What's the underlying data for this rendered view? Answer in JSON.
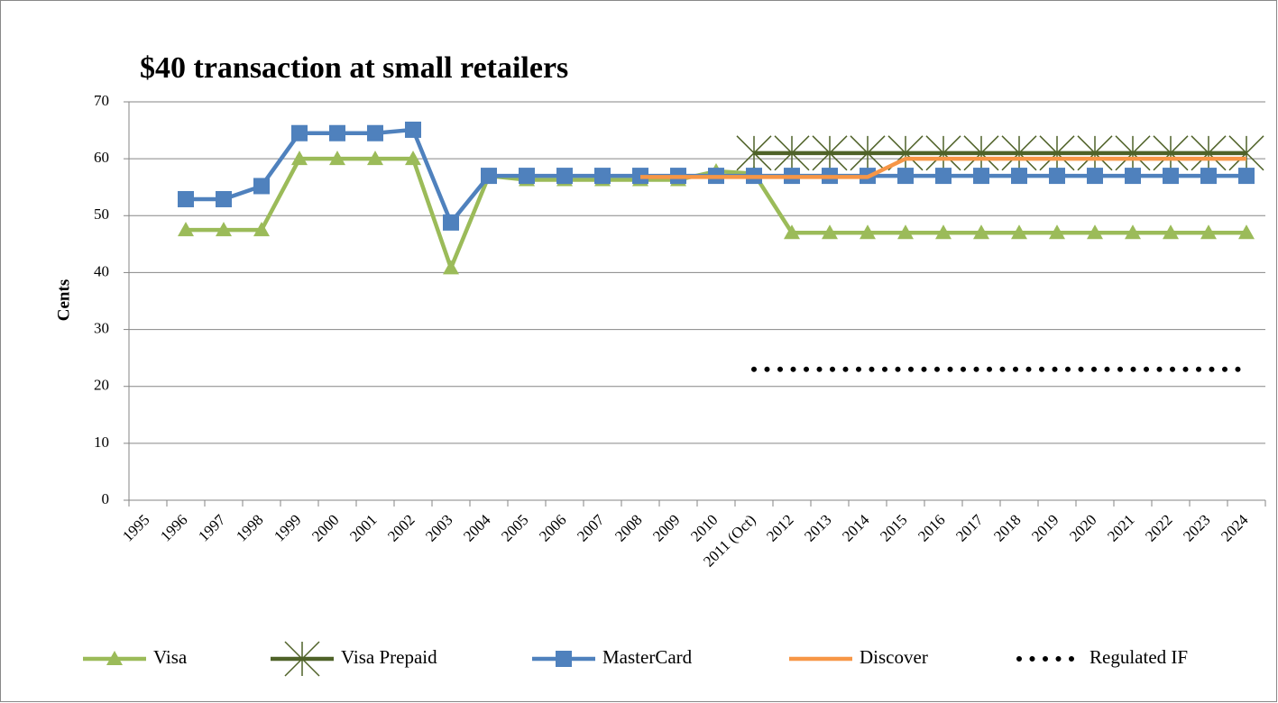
{
  "chart_data": {
    "type": "line",
    "title": "$40 transaction at small retailers",
    "y_label": "Cents",
    "categories": [
      "1995",
      "1996",
      "1997",
      "1998",
      "1999",
      "2000",
      "2001",
      "2002",
      "2003",
      "2004",
      "2005",
      "2006",
      "2007",
      "2008",
      "2009",
      "2010",
      "2011 (Oct)",
      "2012",
      "2013",
      "2014",
      "2015",
      "2016",
      "2017",
      "2018",
      "2019",
      "2020",
      "2021",
      "2022",
      "2023",
      "2024"
    ],
    "ylim": [
      0,
      70
    ],
    "yticks": [
      0,
      10,
      20,
      30,
      40,
      50,
      60,
      70
    ],
    "grid": true,
    "legend": "bottom",
    "series": [
      {
        "name": "Visa",
        "color": "#9bbb59",
        "marker": "triangle",
        "line_style": "solid",
        "values": [
          null,
          47.5,
          47.5,
          47.5,
          60,
          60,
          60,
          60,
          40.8,
          57,
          56.3,
          56.3,
          56.3,
          56.3,
          56.3,
          57.8,
          57.4,
          47,
          47,
          47,
          47,
          47,
          47,
          47,
          47,
          47,
          47,
          47,
          47,
          47
        ]
      },
      {
        "name": "Visa Prepaid",
        "color": "#4f6228",
        "marker": "star",
        "line_style": "solid",
        "values": [
          null,
          null,
          null,
          null,
          null,
          null,
          null,
          null,
          null,
          null,
          null,
          null,
          null,
          null,
          null,
          null,
          61,
          61,
          61,
          61,
          61,
          61,
          61,
          61,
          61,
          61,
          61,
          61,
          61,
          61
        ]
      },
      {
        "name": "MasterCard",
        "color": "#4f81bd",
        "marker": "square",
        "line_style": "solid",
        "values": [
          null,
          52.9,
          52.9,
          55.2,
          64.5,
          64.5,
          64.5,
          65.1,
          48.8,
          57,
          57,
          57,
          57,
          57,
          57,
          57,
          57,
          57,
          57,
          57,
          57,
          57,
          57,
          57,
          57,
          57,
          57,
          57,
          57,
          57
        ]
      },
      {
        "name": "Discover",
        "color": "#f79646",
        "marker": "none",
        "line_style": "solid",
        "values": [
          null,
          null,
          null,
          null,
          null,
          null,
          null,
          null,
          null,
          null,
          null,
          null,
          null,
          56.8,
          56.8,
          56.8,
          56.8,
          56.8,
          56.8,
          56.8,
          60,
          60,
          60,
          60,
          60,
          60,
          60,
          60,
          60,
          60
        ]
      },
      {
        "name": "Regulated IF",
        "color": "#000000",
        "marker": "none",
        "line_style": "dotted",
        "values": [
          null,
          null,
          null,
          null,
          null,
          null,
          null,
          null,
          null,
          null,
          null,
          null,
          null,
          null,
          null,
          null,
          23,
          23,
          23,
          23,
          23,
          23,
          23,
          23,
          23,
          23,
          23,
          23,
          23,
          23
        ]
      }
    ]
  }
}
